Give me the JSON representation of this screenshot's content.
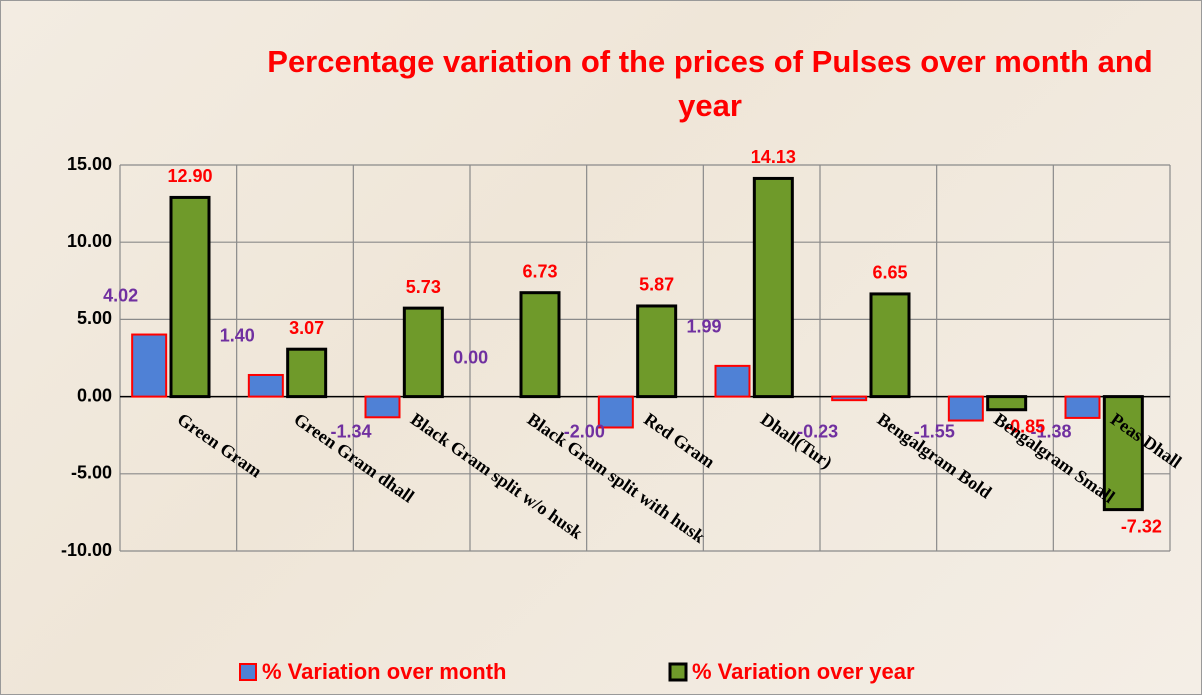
{
  "chart_data": {
    "type": "bar",
    "title": "Percentage variation of the prices of Pulses over month and year",
    "categories": [
      "Green Gram",
      "Green Gram dhall",
      "Black Gram split w/o husk",
      "Black Gram split with husk",
      "Red Gram",
      "Dhall(Tur)",
      "Bengalgram Bold",
      "Bengalgram Small",
      "Peas Dhall"
    ],
    "series": [
      {
        "name": "% Variation over month",
        "color": "#4f81d6",
        "border": "#ff0000",
        "values": [
          4.02,
          1.4,
          -1.34,
          0,
          -2,
          1.99,
          -0.23,
          -1.55,
          -1.38
        ],
        "value_labels": [
          "4.02",
          "1.40",
          "-1.34",
          "0.00",
          "-2.00",
          "1.99",
          "-0.23",
          "-1.55",
          "-1.38"
        ],
        "label_color": "#7030a0"
      },
      {
        "name": "% Variation over year",
        "color": "#6f9a2a",
        "border": "#000000",
        "values": [
          12.9,
          3.07,
          5.73,
          6.73,
          5.87,
          14.13,
          6.65,
          -0.85,
          -7.32
        ],
        "value_labels": [
          "12.90",
          "3.07",
          "5.73",
          "6.73",
          "5.87",
          "14.13",
          "6.65",
          "-0.85",
          "-7.32"
        ],
        "label_color": "#ff0000"
      }
    ],
    "ylim": [
      -10,
      15
    ],
    "yticks": [
      {
        "value": -10,
        "label": "-10.00"
      },
      {
        "value": -5,
        "label": "-5.00"
      },
      {
        "value": 0,
        "label": "0.00"
      },
      {
        "value": 5,
        "label": "5.00"
      },
      {
        "value": 10,
        "label": "10.00"
      },
      {
        "value": 15,
        "label": "15.00"
      }
    ],
    "grid": true
  }
}
